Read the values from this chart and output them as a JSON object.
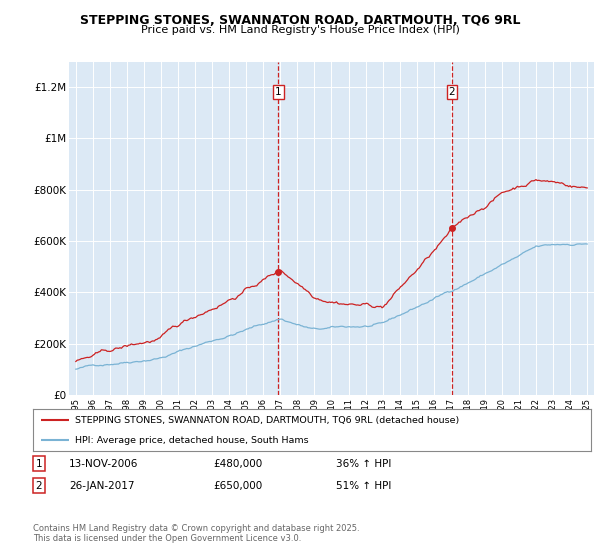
{
  "title_line1": "STEPPING STONES, SWANNATON ROAD, DARTMOUTH, TQ6 9RL",
  "title_line2": "Price paid vs. HM Land Registry's House Price Index (HPI)",
  "plot_bg_color": "#dce9f5",
  "red_color": "#cc2222",
  "blue_color": "#7ab3d4",
  "ylim": [
    0,
    1300000
  ],
  "yticks": [
    0,
    200000,
    400000,
    600000,
    800000,
    1000000,
    1200000
  ],
  "ytick_labels": [
    "£0",
    "£200K",
    "£400K",
    "£600K",
    "£800K",
    "£1M",
    "£1.2M"
  ],
  "sale1_date": "13-NOV-2006",
  "sale1_price": 480000,
  "sale1_pct": "36%",
  "sale1_year": 2006.87,
  "sale2_date": "26-JAN-2017",
  "sale2_price": 650000,
  "sale2_pct": "51%",
  "sale2_year": 2017.07,
  "legend_house_label": "STEPPING STONES, SWANNATON ROAD, DARTMOUTH, TQ6 9RL (detached house)",
  "legend_hpi_label": "HPI: Average price, detached house, South Hams",
  "footer": "Contains HM Land Registry data © Crown copyright and database right 2025.\nThis data is licensed under the Open Government Licence v3.0."
}
